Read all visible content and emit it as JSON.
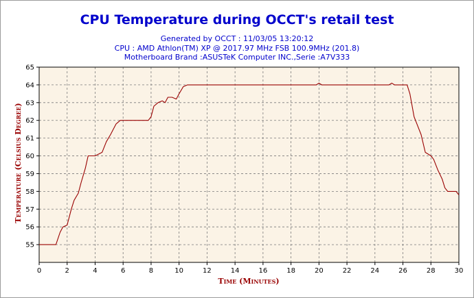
{
  "chart_data": {
    "type": "line",
    "title": "CPU Temperature during OCCT's retail test",
    "subtitle_lines": [
      "Generated by OCCT : 11/03/05 13:20:12",
      "CPU : AMD Athlon(TM) XP @ 2017.97 MHz FSB 100.9MHz (201.8)",
      "Motherboard Brand :ASUSTeK Computer INC.,Serie :A7V333"
    ],
    "xlabel": "Time (Minutes)",
    "ylabel": "Temperature (Celsius Degree)",
    "xlim": [
      0,
      30
    ],
    "ylim": [
      54,
      65
    ],
    "x_ticks": [
      0,
      2,
      4,
      6,
      8,
      10,
      12,
      14,
      16,
      18,
      20,
      22,
      24,
      26,
      28,
      30
    ],
    "y_ticks": [
      55,
      56,
      57,
      58,
      59,
      60,
      61,
      62,
      63,
      64,
      65
    ],
    "grid": true,
    "colors": {
      "title": "#0000cc",
      "axis_label": "#990000",
      "line": "#990000",
      "plot_background": "#fbf3e6",
      "grid": "#7a7a7a"
    },
    "series": [
      {
        "x": [
          0,
          1.2,
          1.5,
          1.7,
          2.0,
          2.3,
          2.5,
          2.8,
          3.0,
          3.3,
          3.5,
          3.7,
          4.0,
          4.5,
          4.8,
          5.1,
          5.3,
          5.5,
          5.8,
          6.0,
          7.0,
          7.8,
          8.0,
          8.2,
          8.5,
          8.8,
          9.0,
          9.2,
          9.5,
          9.8,
          10.0,
          10.3,
          10.6,
          11.0,
          12,
          14,
          16,
          18,
          19.8,
          20.0,
          20.2,
          22,
          24,
          25.0,
          25.2,
          25.4,
          26.0,
          26.3,
          26.5,
          26.8,
          27.0,
          27.3,
          27.6,
          28.0,
          28.2,
          28.5,
          28.8,
          29.0,
          29.2,
          29.5,
          29.8,
          30
        ],
        "y": [
          55,
          55,
          55.7,
          56,
          56.1,
          57,
          57.5,
          57.9,
          58.5,
          59.3,
          60,
          60,
          60,
          60.2,
          60.8,
          61.2,
          61.5,
          61.8,
          62,
          62,
          62,
          62,
          62.2,
          62.8,
          63.0,
          63.1,
          63,
          63.3,
          63.3,
          63.2,
          63.5,
          63.9,
          64,
          64,
          64,
          64,
          64,
          64,
          64,
          64.1,
          64,
          64,
          64,
          64,
          64.1,
          64,
          64,
          64,
          63.5,
          62.2,
          61.8,
          61.2,
          60.2,
          60,
          59.8,
          59.2,
          58.7,
          58.2,
          58,
          58,
          58,
          57.8
        ]
      }
    ]
  }
}
